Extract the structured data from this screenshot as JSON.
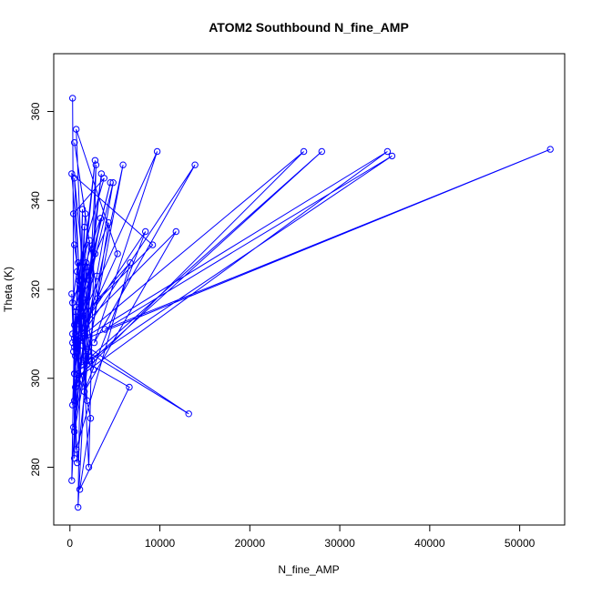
{
  "chart_data": {
    "type": "line",
    "title": "ATOM2 Southbound N_fine_AMP",
    "xlabel": "N_fine_AMP",
    "ylabel": "Theta (K)",
    "xlim": [
      -1800,
      55000
    ],
    "ylim": [
      267,
      373
    ],
    "xticks": [
      0,
      10000,
      20000,
      30000,
      40000,
      50000
    ],
    "yticks": [
      280,
      300,
      320,
      340,
      360
    ],
    "grid": false,
    "legend": "none",
    "marker": "open-circle",
    "colors": {
      "series": "#0000ff",
      "axis": "#000000",
      "background": "#ffffff"
    },
    "series": [
      {
        "x": [
          300,
          500,
          1400,
          900,
          2900,
          2100,
          500,
          2600,
          1200,
          4300,
          1900,
          600,
          3500,
          1600,
          700,
          5300,
          400,
          2800,
          1000,
          6700,
          700,
          600,
          2200,
          4800,
          900,
          1700,
          500,
          3100,
          500,
          2500,
          1800,
          200,
          9200,
          1400,
          9700,
          2700,
          13900,
          1100,
          26000,
          800,
          35300,
          700,
          53400,
          3900,
          35800,
          1300,
          28000,
          2400,
          500,
          1700,
          300,
          13200,
          500,
          8400,
          1600,
          11800,
          1000,
          2800,
          400,
          5900,
          900,
          3000,
          500,
          1900,
          600,
          6600,
          1100,
          2300,
          300,
          4500,
          1400,
          1900,
          400,
          3800,
          800,
          2200,
          500,
          3400,
          300,
          900,
          300,
          1100,
          500,
          2100,
          800,
          200,
          500,
          1800,
          700,
          1000,
          500,
          200,
          1600
        ],
        "y": [
          363,
          282,
          338,
          271,
          348,
          280,
          345,
          302,
          320,
          335,
          303,
          298,
          346,
          310,
          356,
          328,
          306,
          349,
          313,
          326,
          284,
          315,
          322,
          344,
          299,
          337,
          353,
          318,
          288,
          329,
          305,
          346,
          330,
          314,
          351,
          308,
          348,
          309,
          351,
          300,
          351,
          308,
          351.5,
          311,
          350,
          303,
          351,
          304,
          301,
          325,
          308,
          292,
          309,
          333,
          297,
          333,
          311,
          328,
          289,
          348,
          301,
          323,
          295,
          325,
          305,
          298,
          275,
          291,
          310,
          344,
          318,
          295,
          337,
          345,
          324,
          331,
          301,
          336,
          317,
          326,
          294,
          321,
          330,
          306,
          281,
          319,
          307,
          326,
          316,
          322,
          312,
          277,
          334
        ]
      }
    ]
  }
}
